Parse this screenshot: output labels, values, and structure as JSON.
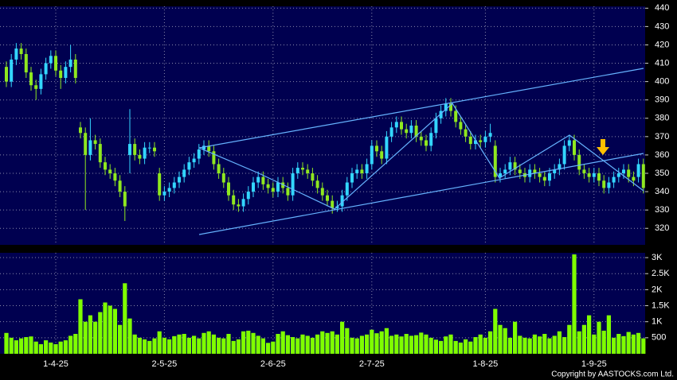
{
  "chart_data": [
    {
      "type": "candlestick",
      "open": [
        408,
        400,
        412,
        418,
        415,
        405,
        398,
        396,
        404,
        410,
        414,
        406,
        402,
        408,
        412,
        375,
        372,
        360,
        368,
        366,
        356,
        352,
        350,
        346,
        340,
        360,
        366,
        360,
        358,
        364,
        364,
        350,
        338,
        340,
        342,
        345,
        348,
        352,
        356,
        358,
        363,
        365,
        362,
        355,
        350,
        345,
        338,
        333,
        332,
        336,
        340,
        345,
        348,
        344,
        342,
        340,
        345,
        342,
        338,
        350,
        353,
        352,
        350,
        346,
        342,
        338,
        335,
        331,
        332,
        338,
        345,
        350,
        352,
        350,
        355,
        365,
        362,
        358,
        370,
        375,
        378,
        374,
        372,
        376,
        370,
        368,
        365,
        372,
        380,
        384,
        388,
        384,
        378,
        374,
        370,
        366,
        368,
        367,
        370,
        365,
        348,
        350,
        352,
        356,
        352,
        350,
        348,
        352,
        350,
        348,
        346,
        350,
        352,
        355,
        365,
        368,
        360,
        352,
        350,
        348,
        350,
        346,
        342,
        345,
        348,
        350,
        352,
        348,
        348,
        355
      ],
      "high": [
        411,
        415,
        421,
        421,
        418,
        408,
        401,
        407,
        413,
        417,
        417,
        409,
        411,
        420,
        415,
        378,
        375,
        380,
        371,
        369,
        359,
        355,
        353,
        349,
        343,
        385,
        369,
        363,
        367,
        367,
        367,
        353,
        343,
        345,
        348,
        351,
        355,
        359,
        361,
        366,
        368,
        368,
        365,
        358,
        353,
        348,
        341,
        336,
        339,
        343,
        348,
        351,
        351,
        347,
        345,
        348,
        348,
        345,
        353,
        356,
        356,
        355,
        353,
        349,
        345,
        341,
        338,
        335,
        341,
        348,
        353,
        355,
        355,
        358,
        368,
        368,
        365,
        373,
        378,
        381,
        381,
        377,
        379,
        379,
        373,
        371,
        375,
        383,
        387,
        391,
        391,
        387,
        381,
        377,
        373,
        371,
        371,
        373,
        377,
        368,
        353,
        355,
        359,
        359,
        355,
        353,
        355,
        355,
        353,
        351,
        353,
        355,
        358,
        368,
        371,
        371,
        363,
        355,
        353,
        353,
        353,
        349,
        348,
        351,
        353,
        355,
        355,
        351,
        358,
        358
      ],
      "low": [
        397,
        397,
        409,
        412,
        402,
        395,
        390,
        393,
        401,
        407,
        403,
        396,
        399,
        405,
        399,
        369,
        330,
        357,
        363,
        353,
        349,
        347,
        343,
        337,
        324,
        350,
        357,
        355,
        355,
        361,
        359,
        335,
        335,
        337,
        339,
        342,
        345,
        349,
        353,
        355,
        360,
        359,
        352,
        347,
        342,
        335,
        330,
        329,
        329,
        333,
        337,
        342,
        341,
        339,
        337,
        337,
        339,
        335,
        335,
        347,
        349,
        347,
        343,
        339,
        335,
        332,
        328,
        329,
        329,
        335,
        342,
        347,
        347,
        347,
        352,
        359,
        355,
        355,
        367,
        372,
        371,
        369,
        369,
        367,
        365,
        362,
        362,
        369,
        377,
        381,
        381,
        375,
        371,
        367,
        363,
        363,
        364,
        364,
        367,
        345,
        345,
        347,
        349,
        349,
        347,
        345,
        345,
        347,
        345,
        343,
        343,
        347,
        349,
        352,
        362,
        357,
        349,
        347,
        345,
        345,
        343,
        339,
        339,
        342,
        345,
        347,
        345,
        343,
        345,
        339
      ],
      "close": [
        400,
        412,
        418,
        415,
        405,
        398,
        396,
        404,
        410,
        414,
        406,
        402,
        408,
        412,
        402,
        372,
        360,
        368,
        366,
        356,
        352,
        350,
        346,
        340,
        332,
        366,
        360,
        358,
        364,
        364,
        362,
        338,
        340,
        342,
        345,
        348,
        352,
        356,
        358,
        363,
        365,
        362,
        355,
        350,
        345,
        338,
        333,
        332,
        336,
        340,
        345,
        348,
        344,
        342,
        340,
        345,
        342,
        338,
        350,
        353,
        352,
        350,
        346,
        342,
        338,
        335,
        331,
        332,
        338,
        345,
        350,
        352,
        350,
        355,
        365,
        362,
        358,
        370,
        375,
        378,
        374,
        372,
        376,
        370,
        368,
        365,
        372,
        380,
        384,
        388,
        384,
        378,
        374,
        370,
        366,
        368,
        367,
        370,
        372,
        348,
        350,
        352,
        356,
        352,
        350,
        348,
        352,
        350,
        348,
        346,
        350,
        352,
        355,
        365,
        368,
        360,
        352,
        350,
        348,
        350,
        346,
        342,
        345,
        348,
        350,
        352,
        348,
        346,
        355,
        342
      ],
      "up_color": "#33d6ff",
      "down_color": "#8fe81f",
      "ylim": [
        311,
        441
      ],
      "yticks": [
        320,
        330,
        340,
        350,
        360,
        370,
        380,
        390,
        400,
        410,
        420,
        430,
        440
      ],
      "grid": true
    },
    {
      "type": "bar",
      "categories": [
        null,
        null,
        null,
        null,
        null,
        null,
        null,
        null,
        null,
        null,
        "1-4-25",
        null,
        null,
        null,
        null,
        null,
        null,
        null,
        null,
        null,
        null,
        null,
        null,
        null,
        null,
        null,
        null,
        null,
        null,
        null,
        null,
        null,
        "2-5-25",
        null,
        null,
        null,
        null,
        null,
        null,
        null,
        null,
        null,
        null,
        null,
        null,
        null,
        null,
        null,
        null,
        null,
        null,
        null,
        null,
        null,
        "2-6-25",
        null,
        null,
        null,
        null,
        null,
        null,
        null,
        null,
        null,
        null,
        null,
        null,
        null,
        null,
        null,
        null,
        null,
        null,
        null,
        "2-7-25",
        null,
        null,
        null,
        null,
        null,
        null,
        null,
        null,
        null,
        null,
        null,
        null,
        null,
        null,
        null,
        null,
        null,
        null,
        null,
        null,
        null,
        null,
        "1-8-25",
        null,
        null,
        null,
        null,
        null,
        null,
        null,
        null,
        null,
        null,
        null,
        null,
        null,
        null,
        null,
        null,
        null,
        null,
        null,
        null,
        null,
        "1-9-25",
        null,
        null,
        null,
        null,
        null,
        null,
        null,
        null,
        null,
        null
      ],
      "values": [
        650,
        500,
        420,
        480,
        520,
        540,
        380,
        300,
        420,
        350,
        300,
        380,
        420,
        560,
        620,
        1700,
        1000,
        1200,
        1000,
        1300,
        1600,
        1500,
        1400,
        900,
        2200,
        1100,
        600,
        500,
        450,
        400,
        480,
        700,
        500,
        450,
        550,
        600,
        620,
        500,
        560,
        480,
        650,
        700,
        600,
        500,
        480,
        620,
        400,
        450,
        700,
        720,
        650,
        560,
        480,
        340,
        380,
        620,
        700,
        580,
        520,
        480,
        600,
        560,
        500,
        600,
        700,
        650,
        700,
        600,
        1000,
        800,
        500,
        480,
        560,
        600,
        750,
        640,
        700,
        800,
        560,
        600,
        540,
        620,
        560,
        580,
        660,
        600,
        500,
        440,
        400,
        540,
        600,
        400,
        350,
        450,
        380,
        520,
        600,
        500,
        700,
        1400,
        900,
        800,
        500,
        1000,
        560,
        500,
        480,
        600,
        540,
        620,
        480,
        560,
        700,
        520,
        900,
        3100,
        700,
        900,
        1200,
        600,
        1000,
        720,
        1200,
        500,
        620,
        550,
        680,
        600,
        650,
        480
      ],
      "color": "#7fff00",
      "ylim": [
        0,
        3150
      ],
      "yticks": [
        500,
        {
          "value": 1000,
          "label": "1K"
        },
        {
          "value": 1500,
          "label": "1.5K"
        },
        {
          "value": 2000,
          "label": "2K"
        },
        {
          "value": 2500,
          "label": "2.5K"
        },
        {
          "value": 3000,
          "label": "3K"
        }
      ],
      "grid": true,
      "annotation": "Copyright by AASTOCKS.com Ltd."
    }
  ]
}
